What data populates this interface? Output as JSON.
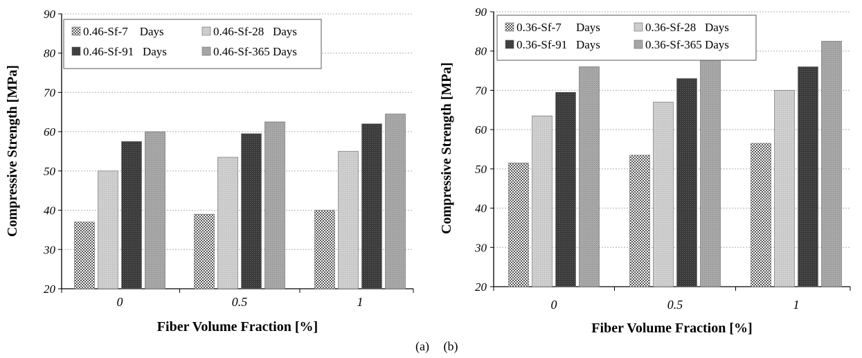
{
  "figure": {
    "caption_a": "(a)",
    "caption_b": "(b)"
  },
  "colors": {
    "s7": "#9a9a9a",
    "s28": "#c9c9c9",
    "s91": "#3d3d3d",
    "s365": "#a6a6a6",
    "grid": "#b0b0b0",
    "axis": "#000000"
  },
  "chart_data": [
    {
      "type": "bar",
      "panel": "a",
      "xlabel": "Fiber Volume Fraction [%]",
      "ylabel": "Compressive Strength [MPa]",
      "categories": [
        "0",
        "0.5",
        "1"
      ],
      "ylim": [
        20,
        90
      ],
      "yticks": [
        "20",
        "30",
        "40",
        "50",
        "60",
        "70",
        "80",
        "90"
      ],
      "grid": true,
      "legend_position": "top-left",
      "series": [
        {
          "name": "0.46-Sf-7    Days",
          "values": [
            37,
            39,
            40
          ]
        },
        {
          "name": "0.46-Sf-28   Days",
          "values": [
            50,
            53.5,
            55
          ]
        },
        {
          "name": "0.46-Sf-91   Days",
          "values": [
            57.5,
            59.5,
            62
          ]
        },
        {
          "name": "0.46-Sf-365 Days",
          "values": [
            60,
            62.5,
            64.5
          ]
        }
      ]
    },
    {
      "type": "bar",
      "panel": "b",
      "xlabel": "Fiber Volume Fraction [%]",
      "ylabel": "Compressive Strength [MPa]",
      "categories": [
        "0",
        "0.5",
        "1"
      ],
      "ylim": [
        20,
        90
      ],
      "yticks": [
        "20",
        "30",
        "40",
        "50",
        "60",
        "70",
        "80",
        "90"
      ],
      "grid": true,
      "legend_position": "top-left",
      "series": [
        {
          "name": "0.36-Sf-7     Days",
          "values": [
            51.5,
            53.5,
            56.5
          ]
        },
        {
          "name": "0.36-Sf-28   Days",
          "values": [
            63.5,
            67,
            70
          ]
        },
        {
          "name": "0.36-Sf-91   Days",
          "values": [
            69.5,
            73,
            76
          ]
        },
        {
          "name": "0.36-Sf-365 Days",
          "values": [
            76,
            78,
            82.5
          ]
        }
      ]
    }
  ]
}
